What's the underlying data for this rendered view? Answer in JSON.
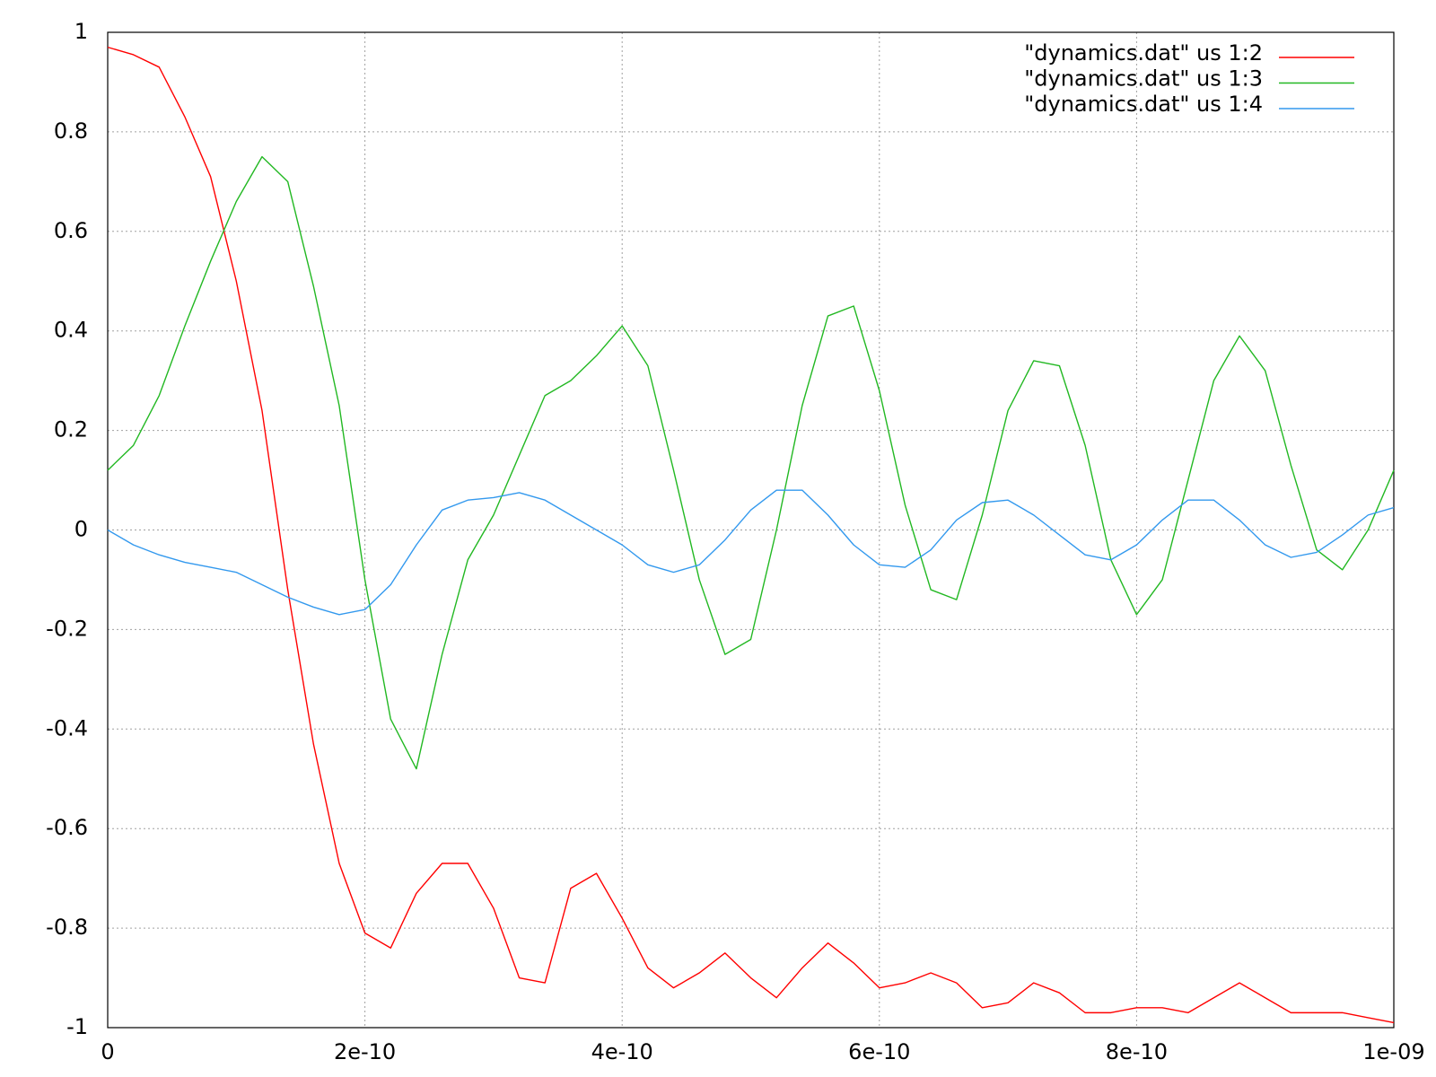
{
  "chart_data": {
    "type": "line",
    "x": [
      0,
      2e-11,
      4e-11,
      6e-11,
      8e-11,
      1e-10,
      1.2e-10,
      1.4e-10,
      1.6e-10,
      1.8e-10,
      2e-10,
      2.2e-10,
      2.4e-10,
      2.6e-10,
      2.8e-10,
      3e-10,
      3.2e-10,
      3.4e-10,
      3.6e-10,
      3.8e-10,
      4e-10,
      4.2e-10,
      4.4e-10,
      4.6e-10,
      4.8e-10,
      5e-10,
      5.2e-10,
      5.4e-10,
      5.6e-10,
      5.8e-10,
      6e-10,
      6.2e-10,
      6.4e-10,
      6.6e-10,
      6.8e-10,
      7e-10,
      7.2e-10,
      7.4e-10,
      7.6e-10,
      7.8e-10,
      8e-10,
      8.2e-10,
      8.4e-10,
      8.6e-10,
      8.8e-10,
      9e-10,
      9.2e-10,
      9.4e-10,
      9.6e-10,
      9.8e-10,
      1e-09
    ],
    "series": [
      {
        "name": "\"dynamics.dat\" us 1:2",
        "color": "#ff0000",
        "values": [
          0.97,
          0.955,
          0.93,
          0.83,
          0.71,
          0.5,
          0.24,
          -0.12,
          -0.43,
          -0.67,
          -0.81,
          -0.84,
          -0.73,
          -0.67,
          -0.67,
          -0.76,
          -0.9,
          -0.91,
          -0.72,
          -0.69,
          -0.78,
          -0.88,
          -0.92,
          -0.89,
          -0.85,
          -0.9,
          -0.94,
          -0.88,
          -0.83,
          -0.87,
          -0.92,
          -0.91,
          -0.89,
          -0.91,
          -0.96,
          -0.95,
          -0.91,
          -0.93,
          -0.97,
          -0.97,
          -0.96,
          -0.96,
          -0.97,
          -0.94,
          -0.91,
          -0.94,
          -0.97,
          -0.97,
          -0.97,
          -0.98,
          -0.99
        ]
      },
      {
        "name": "\"dynamics.dat\" us 1:3",
        "color": "#22b822",
        "values": [
          0.12,
          0.17,
          0.27,
          0.41,
          0.54,
          0.66,
          0.75,
          0.7,
          0.49,
          0.25,
          -0.1,
          -0.38,
          -0.48,
          -0.25,
          -0.06,
          0.03,
          0.15,
          0.27,
          0.3,
          0.35,
          0.41,
          0.33,
          0.12,
          -0.1,
          -0.25,
          -0.22,
          0.0,
          0.25,
          0.43,
          0.45,
          0.28,
          0.05,
          -0.12,
          -0.14,
          0.03,
          0.24,
          0.34,
          0.33,
          0.17,
          -0.06,
          -0.17,
          -0.1,
          0.1,
          0.3,
          0.39,
          0.32,
          0.13,
          -0.04,
          -0.08,
          0.0,
          0.12
        ]
      },
      {
        "name": "\"dynamics.dat\" us 1:4",
        "color": "#3399ee",
        "values": [
          0,
          -0.03,
          -0.05,
          -0.065,
          -0.075,
          -0.085,
          -0.11,
          -0.135,
          -0.155,
          -0.17,
          -0.16,
          -0.11,
          -0.03,
          0.04,
          0.06,
          0.065,
          0.075,
          0.06,
          0.03,
          0.0,
          -0.03,
          -0.07,
          -0.085,
          -0.07,
          -0.02,
          0.04,
          0.08,
          0.08,
          0.03,
          -0.03,
          -0.07,
          -0.075,
          -0.04,
          0.02,
          0.055,
          0.06,
          0.03,
          -0.01,
          -0.05,
          -0.06,
          -0.03,
          0.02,
          0.06,
          0.06,
          0.02,
          -0.03,
          -0.055,
          -0.045,
          -0.01,
          0.03,
          0.045
        ]
      }
    ],
    "xlim": [
      0,
      1e-09
    ],
    "xticks": [
      0,
      {
        "value": 2e-10,
        "label": "2e-10"
      },
      {
        "value": 4e-10,
        "label": "4e-10"
      },
      {
        "value": 6e-10,
        "label": "6e-10"
      },
      {
        "value": 8e-10,
        "label": "8e-10"
      },
      {
        "value": 1e-09,
        "label": "1e-09"
      }
    ],
    "ylim": [
      -1,
      1
    ],
    "yticks": [
      -1,
      -0.8,
      -0.6,
      -0.4,
      -0.2,
      0,
      0.2,
      0.4,
      0.6,
      0.8,
      1
    ],
    "grid": true,
    "legend": "top-right"
  }
}
